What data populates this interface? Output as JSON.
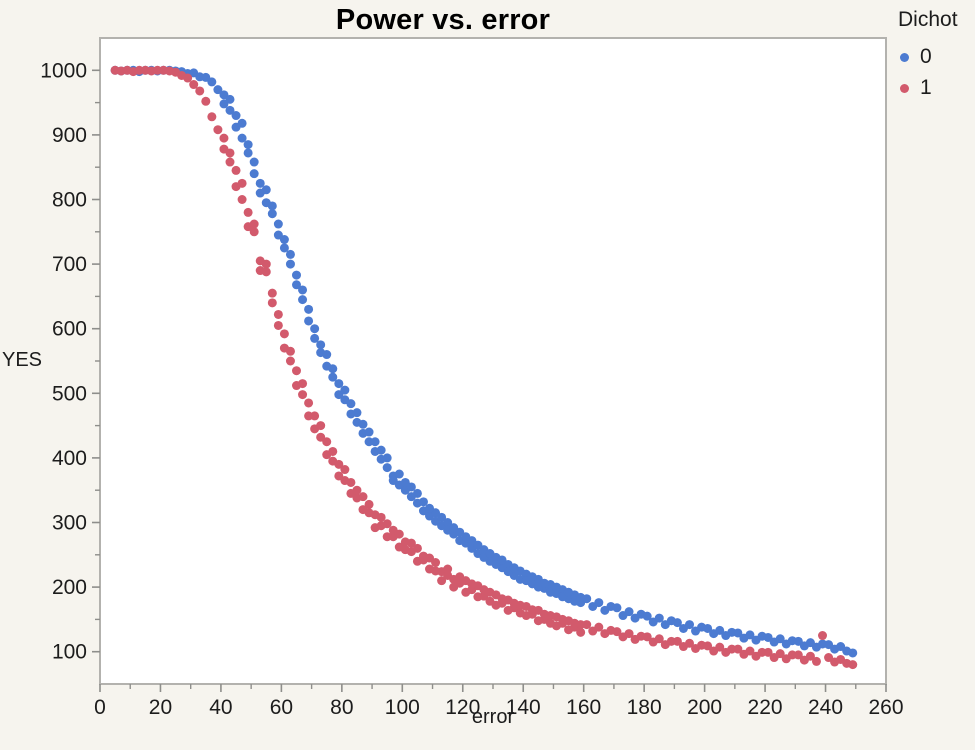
{
  "frame": {
    "canvas_bg": "#F6F4EE",
    "plot_bg": "#FFFFFF",
    "border_color": "#B3B2AE",
    "tick_color": "#8E8E8B",
    "text_color": "#1C1C1C"
  },
  "chart_data": {
    "type": "scatter",
    "title": "Power vs. error",
    "xlabel": "error",
    "ylabel": "YES",
    "legend_title": "Dichot",
    "legend_position": "right-top",
    "grid": false,
    "xlim": [
      0,
      260
    ],
    "ylim": [
      50,
      1050
    ],
    "x_major_ticks": [
      0,
      20,
      40,
      60,
      80,
      100,
      120,
      140,
      160,
      180,
      200,
      220,
      240,
      260
    ],
    "x_minor_ticks": [
      10,
      30,
      50,
      70,
      90,
      110,
      130,
      150,
      170,
      190,
      210,
      230,
      250
    ],
    "y_major_ticks": [
      100,
      200,
      300,
      400,
      500,
      600,
      700,
      800,
      900,
      1000
    ],
    "y_minor_ticks": [
      150,
      250,
      350,
      450,
      550,
      650,
      750,
      850,
      950
    ],
    "series": [
      {
        "name": "0",
        "color": "#4C7BD1",
        "x_start": 5,
        "x_step": 2,
        "y": [
          1000,
          999,
          1000,
          1000,
          998,
          1000,
          1000,
          999,
          1000,
          1000,
          999,
          998,
          995,
          996,
          990,
          989,
          982,
          970,
          962,
          938,
          930,
          895,
          885,
          840,
          825,
          815,
          778,
          762,
          738,
          700,
          683,
          645,
          630,
          600,
          563,
          560,
          525,
          515,
          490,
          484,
          455,
          452,
          425,
          410,
          412,
          385,
          372,
          375,
          350,
          355,
          330,
          332,
          310,
          315,
          295,
          300,
          282,
          285,
          268,
          272,
          252,
          258,
          240,
          246,
          230,
          235,
          218,
          225,
          220,
          205,
          212,
          198,
          204,
          190,
          196,
          182,
          188,
          176,
          182,
          170,
          176,
          164,
          170,
          168,
          156,
          162,
          152,
          158,
          155,
          146,
          152,
          142,
          148,
          145,
          136,
          142,
          132,
          138,
          136,
          128,
          133,
          125,
          130,
          129,
          121,
          126,
          118,
          124,
          122,
          115,
          120,
          112,
          117,
          116,
          109,
          114,
          107,
          112,
          111,
          104,
          108,
          101,
          98
        ],
        "rep2_x_start": 41,
        "rep2_x_step": 2,
        "y_rep2": [
          948,
          955,
          912,
          918,
          872,
          858,
          810,
          795,
          790,
          745,
          725,
          715,
          668,
          660,
          612,
          585,
          575,
          542,
          538,
          498,
          505,
          468,
          470,
          438,
          440,
          425,
          398,
          400,
          365,
          358,
          362,
          340,
          345,
          318,
          322,
          302,
          308,
          288,
          292,
          272,
          278,
          260,
          265,
          246,
          252,
          235,
          242,
          224,
          230,
          212,
          210,
          216,
          200,
          206,
          192,
          200,
          185,
          192,
          178,
          184
        ]
      },
      {
        "name": "1",
        "color": "#D25A6C",
        "x_start": 5,
        "x_step": 2,
        "y": [
          1000,
          999,
          1000,
          998,
          1000,
          1000,
          999,
          1000,
          1000,
          999,
          997,
          992,
          988,
          978,
          968,
          952,
          928,
          908,
          895,
          858,
          845,
          800,
          780,
          750,
          705,
          688,
          640,
          622,
          592,
          550,
          535,
          498,
          485,
          465,
          432,
          425,
          395,
          390,
          365,
          362,
          338,
          340,
          315,
          312,
          295,
          298,
          278,
          282,
          270,
          255,
          260,
          242,
          245,
          238,
          224,
          228,
          212,
          216,
          210,
          196,
          202,
          186,
          192,
          188,
          175,
          180,
          168,
          172,
          170,
          158,
          164,
          150,
          156,
          154,
          144,
          148,
          138,
          142,
          142,
          132,
          138,
          128,
          133,
          131,
          123,
          128,
          119,
          124,
          123,
          115,
          120,
          111,
          116,
          116,
          108,
          113,
          105,
          110,
          109,
          101,
          107,
          99,
          104,
          104,
          96,
          101,
          93,
          99,
          99,
          91,
          97,
          89,
          95,
          95,
          87,
          93,
          85,
          125,
          91,
          84,
          88,
          82,
          80
        ],
        "rep2_x_start": 41,
        "rep2_x_step": 2,
        "y_rep2": [
          878,
          872,
          820,
          825,
          758,
          762,
          690,
          700,
          655,
          605,
          570,
          565,
          512,
          515,
          465,
          445,
          450,
          405,
          410,
          372,
          382,
          345,
          350,
          320,
          328,
          292,
          308,
          278,
          288,
          262,
          258,
          268,
          240,
          248,
          228,
          225,
          210,
          218,
          200,
          206,
          192,
          205,
          185,
          196,
          178,
          172,
          182,
          164,
          175,
          160,
          156,
          165,
          148,
          158,
          144,
          140,
          150,
          134,
          144,
          130
        ]
      }
    ]
  }
}
